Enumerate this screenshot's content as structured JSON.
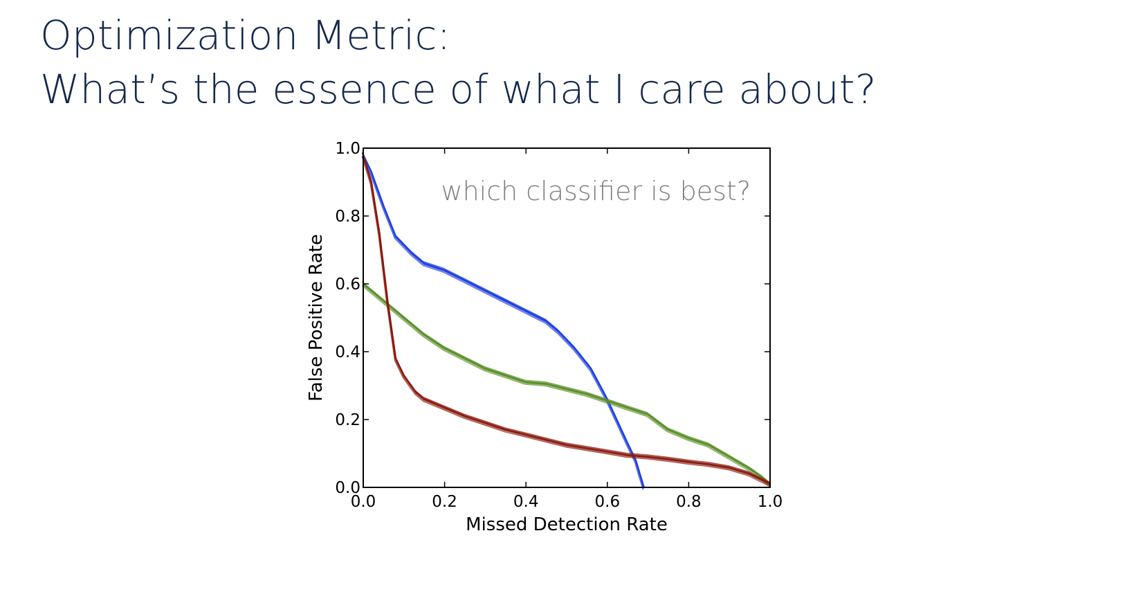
{
  "slide": {
    "title_line1": "Optimization Metric:",
    "title_line2": "What’s the essence of what I care about?"
  },
  "chart_data": {
    "type": "line",
    "title": "",
    "xlabel": "Missed Detection Rate",
    "ylabel": "False Positive Rate",
    "xlim": [
      0.0,
      1.0
    ],
    "ylim": [
      0.0,
      1.0
    ],
    "xticks": [
      "0.0",
      "0.2",
      "0.4",
      "0.6",
      "0.8",
      "1.0"
    ],
    "yticks": [
      "0.0",
      "0.2",
      "0.4",
      "0.6",
      "0.8",
      "1.0"
    ],
    "grid": false,
    "annotation": "which classifier is best?",
    "series": [
      {
        "color": "#1f3fe0",
        "x": [
          0.0,
          0.02,
          0.05,
          0.08,
          0.12,
          0.15,
          0.2,
          0.25,
          0.3,
          0.35,
          0.4,
          0.45,
          0.48,
          0.52,
          0.56,
          0.6,
          0.65,
          0.67,
          0.68,
          0.69
        ],
        "y": [
          0.98,
          0.93,
          0.83,
          0.74,
          0.69,
          0.66,
          0.64,
          0.61,
          0.58,
          0.55,
          0.52,
          0.49,
          0.46,
          0.41,
          0.35,
          0.26,
          0.13,
          0.08,
          0.04,
          0.0
        ]
      },
      {
        "color": "#5a8f29",
        "x": [
          0.0,
          0.05,
          0.1,
          0.15,
          0.2,
          0.25,
          0.3,
          0.35,
          0.4,
          0.45,
          0.5,
          0.55,
          0.6,
          0.65,
          0.7,
          0.75,
          0.8,
          0.85,
          0.9,
          0.95,
          0.98,
          1.0
        ],
        "y": [
          0.6,
          0.55,
          0.5,
          0.45,
          0.41,
          0.38,
          0.35,
          0.33,
          0.31,
          0.305,
          0.29,
          0.275,
          0.255,
          0.235,
          0.215,
          0.17,
          0.145,
          0.125,
          0.09,
          0.055,
          0.03,
          0.01
        ]
      },
      {
        "color": "#8b1a0e",
        "x": [
          0.0,
          0.02,
          0.04,
          0.06,
          0.08,
          0.1,
          0.13,
          0.15,
          0.2,
          0.25,
          0.3,
          0.35,
          0.4,
          0.45,
          0.5,
          0.55,
          0.6,
          0.65,
          0.7,
          0.75,
          0.8,
          0.85,
          0.9,
          0.95,
          0.98,
          1.0
        ],
        "y": [
          0.98,
          0.9,
          0.75,
          0.55,
          0.38,
          0.33,
          0.28,
          0.26,
          0.235,
          0.21,
          0.19,
          0.17,
          0.155,
          0.14,
          0.125,
          0.115,
          0.105,
          0.095,
          0.09,
          0.083,
          0.075,
          0.068,
          0.058,
          0.04,
          0.022,
          0.01
        ]
      }
    ]
  }
}
